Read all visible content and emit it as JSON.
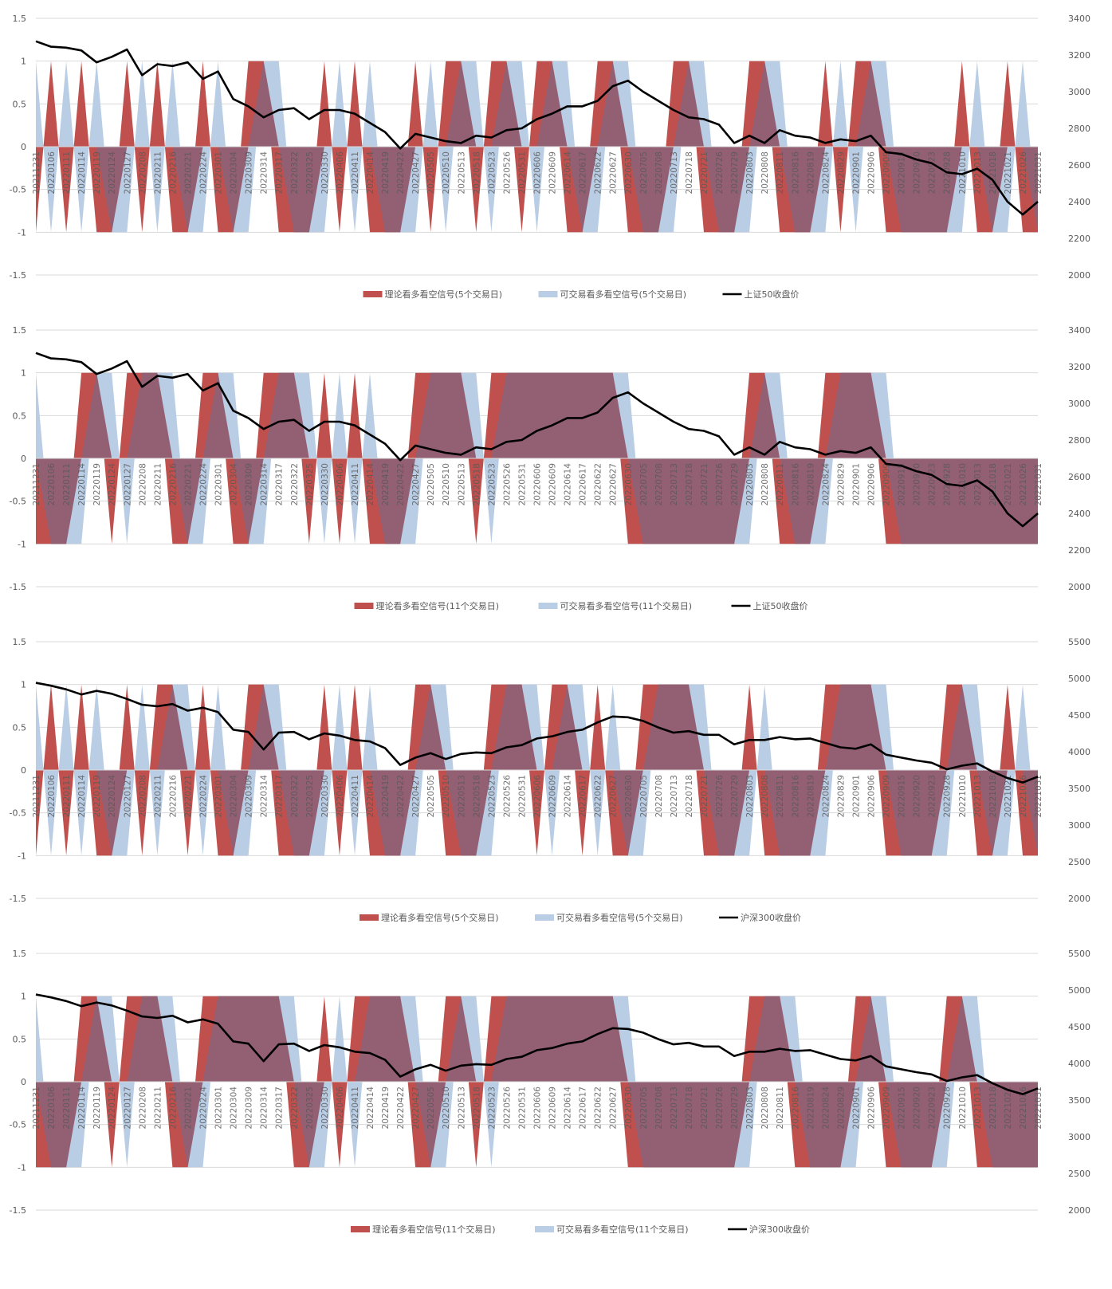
{
  "colors": {
    "theory": "#C0504D",
    "tradable": "#B9CDE5",
    "overlap": "#935F73",
    "close": "#000000",
    "grid": "#D9D9D9",
    "axis_text": "#595959"
  },
  "x_labels": [
    "20211231",
    "20220106",
    "20220111",
    "20220114",
    "20220119",
    "20220124",
    "20220127",
    "20220208",
    "20220211",
    "20220216",
    "20220221",
    "20220224",
    "20220301",
    "20220304",
    "20220309",
    "20220314",
    "20220317",
    "20220322",
    "20220325",
    "20220330",
    "20220406",
    "20220411",
    "20220414",
    "20220419",
    "20220422",
    "20220427",
    "20220505",
    "20220510",
    "20220513",
    "20220518",
    "20220523",
    "20220526",
    "20220531",
    "20220606",
    "20220609",
    "20220614",
    "20220617",
    "20220622",
    "20220627",
    "20220630",
    "20220705",
    "20220708",
    "20220713",
    "20220718",
    "20220721",
    "20220726",
    "20220729",
    "20220803",
    "20220808",
    "20220811",
    "20220816",
    "20220819",
    "20220824",
    "20220829",
    "20220901",
    "20220906",
    "20220909",
    "20220915",
    "20220920",
    "20220923",
    "20220928",
    "20221010",
    "20221013",
    "20221018",
    "20221021",
    "20221026",
    "20221031"
  ],
  "chart_data": [
    {
      "type": "area+line",
      "left_ticks": [
        "1.5",
        "1",
        "0.5",
        "0",
        "-0.5",
        "-1",
        "-1.5"
      ],
      "ylim": [
        -1.5,
        1.5
      ],
      "right_ticks": [
        "3400",
        "3200",
        "3000",
        "2800",
        "2600",
        "2400",
        "2200",
        "2000"
      ],
      "y2lim": [
        2000,
        3400
      ],
      "legend": [
        "理论看多看空信号(5个交易日)",
        "可交易看多看空信号(5个交易日)",
        "上证50收盘价"
      ],
      "legend_position": "bottom",
      "theory": [
        -1,
        1,
        -1,
        1,
        -1,
        -1,
        1,
        -1,
        1,
        -1,
        -1,
        1,
        -1,
        -1,
        1,
        1,
        -1,
        -1,
        -1,
        1,
        -1,
        1,
        -1,
        -1,
        -1,
        1,
        -1,
        1,
        1,
        -1,
        1,
        1,
        -1,
        1,
        1,
        -1,
        -1,
        1,
        1,
        -1,
        -1,
        -1,
        1,
        1,
        -1,
        -1,
        -1,
        1,
        1,
        -1,
        -1,
        -1,
        1,
        -1,
        1,
        1,
        -1,
        -1,
        -1,
        -1,
        -1,
        1,
        -1,
        -1,
        1,
        -1,
        -1
      ],
      "tradable": [
        1,
        -1,
        1,
        -1,
        1,
        -1,
        -1,
        1,
        -1,
        1,
        -1,
        -1,
        1,
        -1,
        -1,
        1,
        1,
        -1,
        -1,
        -1,
        1,
        -1,
        1,
        -1,
        -1,
        -1,
        1,
        -1,
        1,
        1,
        -1,
        1,
        1,
        -1,
        1,
        1,
        -1,
        -1,
        1,
        1,
        -1,
        -1,
        -1,
        1,
        1,
        -1,
        -1,
        -1,
        1,
        1,
        -1,
        -1,
        -1,
        1,
        -1,
        1,
        1,
        -1,
        -1,
        -1,
        -1,
        -1,
        1,
        -1,
        -1,
        1,
        -1
      ],
      "close": [
        3275,
        3245,
        3240,
        3225,
        3160,
        3190,
        3230,
        3090,
        3150,
        3140,
        3160,
        3070,
        3110,
        2960,
        2920,
        2860,
        2900,
        2910,
        2850,
        2900,
        2900,
        2880,
        2830,
        2780,
        2690,
        2770,
        2750,
        2730,
        2720,
        2760,
        2750,
        2790,
        2800,
        2850,
        2880,
        2920,
        2920,
        2950,
        3030,
        3060,
        3000,
        2950,
        2900,
        2860,
        2850,
        2820,
        2720,
        2760,
        2720,
        2790,
        2760,
        2750,
        2720,
        2740,
        2730,
        2760,
        2670,
        2660,
        2630,
        2610,
        2560,
        2550,
        2580,
        2520,
        2400,
        2330,
        2400
      ]
    },
    {
      "type": "area+line",
      "left_ticks": [
        "1.5",
        "1",
        "0.5",
        "0",
        "-0.5",
        "-1",
        "-1.5"
      ],
      "ylim": [
        -1.5,
        1.5
      ],
      "right_ticks": [
        "3400",
        "3200",
        "3000",
        "2800",
        "2600",
        "2400",
        "2200",
        "2000"
      ],
      "y2lim": [
        2000,
        3400
      ],
      "legend": [
        "理论看多看空信号(11个交易日)",
        "可交易看多看空信号(11个交易日)",
        "上证50收盘价"
      ],
      "legend_position": "bottom",
      "theory": [
        -1,
        -1,
        -1,
        1,
        1,
        -1,
        1,
        1,
        1,
        -1,
        -1,
        1,
        1,
        -1,
        -1,
        1,
        1,
        1,
        -1,
        1,
        -1,
        1,
        -1,
        -1,
        -1,
        1,
        1,
        1,
        1,
        -1,
        1,
        1,
        1,
        1,
        1,
        1,
        1,
        1,
        1,
        -1,
        -1,
        -1,
        -1,
        -1,
        -1,
        -1,
        -1,
        1,
        1,
        -1,
        -1,
        -1,
        1,
        1,
        1,
        1,
        -1,
        -1,
        -1,
        -1,
        -1,
        -1,
        -1,
        -1,
        -1,
        -1,
        -1
      ],
      "tradable": [
        1,
        -1,
        -1,
        -1,
        1,
        1,
        -1,
        1,
        1,
        1,
        -1,
        -1,
        1,
        1,
        -1,
        -1,
        1,
        1,
        1,
        -1,
        1,
        -1,
        1,
        -1,
        -1,
        -1,
        1,
        1,
        1,
        1,
        -1,
        1,
        1,
        1,
        1,
        1,
        1,
        1,
        1,
        1,
        -1,
        -1,
        -1,
        -1,
        -1,
        -1,
        -1,
        -1,
        1,
        1,
        -1,
        -1,
        -1,
        1,
        1,
        1,
        1,
        -1,
        -1,
        -1,
        -1,
        -1,
        -1,
        -1,
        -1,
        -1,
        -1
      ],
      "close": [
        3275,
        3245,
        3240,
        3225,
        3160,
        3190,
        3230,
        3090,
        3150,
        3140,
        3160,
        3070,
        3110,
        2960,
        2920,
        2860,
        2900,
        2910,
        2850,
        2900,
        2900,
        2880,
        2830,
        2780,
        2690,
        2770,
        2750,
        2730,
        2720,
        2760,
        2750,
        2790,
        2800,
        2850,
        2880,
        2920,
        2920,
        2950,
        3030,
        3060,
        3000,
        2950,
        2900,
        2860,
        2850,
        2820,
        2720,
        2760,
        2720,
        2790,
        2760,
        2750,
        2720,
        2740,
        2730,
        2760,
        2670,
        2660,
        2630,
        2610,
        2560,
        2550,
        2580,
        2520,
        2400,
        2330,
        2400
      ]
    },
    {
      "type": "area+line",
      "left_ticks": [
        "1.5",
        "1",
        "0.5",
        "0",
        "-0.5",
        "-1",
        "-1.5"
      ],
      "ylim": [
        -1.5,
        1.5
      ],
      "right_ticks": [
        "5500",
        "5000",
        "4500",
        "4000",
        "3500",
        "3000",
        "2500",
        "2000"
      ],
      "y2lim": [
        2000,
        5500
      ],
      "legend": [
        "理论看多看空信号(5个交易日)",
        "可交易看多看空信号(5个交易日)",
        "沪深300收盘价"
      ],
      "legend_position": "bottom",
      "theory": [
        -1,
        1,
        -1,
        1,
        -1,
        -1,
        1,
        -1,
        1,
        1,
        -1,
        1,
        -1,
        -1,
        1,
        1,
        -1,
        -1,
        -1,
        1,
        -1,
        1,
        -1,
        -1,
        -1,
        1,
        1,
        -1,
        -1,
        -1,
        1,
        1,
        1,
        -1,
        1,
        1,
        -1,
        1,
        -1,
        -1,
        1,
        1,
        1,
        1,
        -1,
        -1,
        -1,
        1,
        -1,
        -1,
        -1,
        -1,
        1,
        1,
        1,
        1,
        -1,
        -1,
        -1,
        -1,
        1,
        1,
        -1,
        -1,
        1,
        -1,
        -1
      ],
      "tradable": [
        1,
        -1,
        1,
        -1,
        1,
        -1,
        -1,
        1,
        -1,
        1,
        1,
        -1,
        1,
        -1,
        -1,
        1,
        1,
        -1,
        -1,
        -1,
        1,
        -1,
        1,
        -1,
        -1,
        -1,
        1,
        1,
        -1,
        -1,
        -1,
        1,
        1,
        1,
        -1,
        1,
        1,
        -1,
        1,
        -1,
        -1,
        1,
        1,
        1,
        1,
        -1,
        -1,
        -1,
        1,
        -1,
        -1,
        -1,
        -1,
        1,
        1,
        1,
        1,
        -1,
        -1,
        -1,
        -1,
        1,
        1,
        -1,
        -1,
        1,
        -1
      ],
      "close": [
        4940,
        4900,
        4850,
        4780,
        4830,
        4790,
        4720,
        4640,
        4620,
        4650,
        4560,
        4600,
        4540,
        4300,
        4270,
        4030,
        4260,
        4270,
        4170,
        4250,
        4220,
        4160,
        4140,
        4050,
        3820,
        3920,
        3980,
        3900,
        3970,
        3990,
        3980,
        4060,
        4090,
        4180,
        4210,
        4270,
        4300,
        4400,
        4480,
        4470,
        4420,
        4330,
        4260,
        4280,
        4230,
        4230,
        4100,
        4160,
        4160,
        4200,
        4170,
        4180,
        4120,
        4060,
        4040,
        4100,
        3960,
        3920,
        3880,
        3850,
        3760,
        3810,
        3840,
        3730,
        3640,
        3580,
        3660
      ]
    },
    {
      "type": "area+line",
      "left_ticks": [
        "1.5",
        "1",
        "0.5",
        "0",
        "-0.5",
        "-1",
        "-1.5"
      ],
      "ylim": [
        -1.5,
        1.5
      ],
      "right_ticks": [
        "5500",
        "5000",
        "4500",
        "4000",
        "3500",
        "3000",
        "2500",
        "2000"
      ],
      "y2lim": [
        2000,
        5500
      ],
      "legend": [
        "理论看多看空信号(11个交易日)",
        "可交易看多看空信号(11个交易日)",
        "沪深300收盘价"
      ],
      "legend_position": "bottom",
      "theory": [
        -1,
        -1,
        -1,
        1,
        1,
        -1,
        1,
        1,
        1,
        -1,
        -1,
        1,
        1,
        1,
        1,
        1,
        1,
        -1,
        -1,
        1,
        -1,
        1,
        1,
        1,
        1,
        -1,
        -1,
        1,
        1,
        -1,
        1,
        1,
        1,
        1,
        1,
        1,
        1,
        1,
        1,
        -1,
        -1,
        -1,
        -1,
        -1,
        -1,
        -1,
        -1,
        1,
        1,
        1,
        -1,
        -1,
        -1,
        -1,
        1,
        1,
        -1,
        -1,
        -1,
        -1,
        1,
        1,
        -1,
        -1,
        -1,
        -1,
        -1
      ],
      "tradable": [
        1,
        -1,
        -1,
        -1,
        1,
        1,
        -1,
        1,
        1,
        1,
        -1,
        -1,
        1,
        1,
        1,
        1,
        1,
        1,
        -1,
        -1,
        1,
        -1,
        1,
        1,
        1,
        1,
        -1,
        -1,
        1,
        1,
        -1,
        1,
        1,
        1,
        1,
        1,
        1,
        1,
        1,
        1,
        -1,
        -1,
        -1,
        -1,
        -1,
        -1,
        -1,
        -1,
        1,
        1,
        1,
        -1,
        -1,
        -1,
        -1,
        1,
        1,
        -1,
        -1,
        -1,
        -1,
        1,
        1,
        -1,
        -1,
        -1,
        -1
      ],
      "close": [
        4940,
        4900,
        4850,
        4780,
        4830,
        4790,
        4720,
        4640,
        4620,
        4650,
        4560,
        4600,
        4540,
        4300,
        4270,
        4030,
        4260,
        4270,
        4170,
        4250,
        4220,
        4160,
        4140,
        4050,
        3820,
        3920,
        3980,
        3900,
        3970,
        3990,
        3980,
        4060,
        4090,
        4180,
        4210,
        4270,
        4300,
        4400,
        4480,
        4470,
        4420,
        4330,
        4260,
        4280,
        4230,
        4230,
        4100,
        4160,
        4160,
        4200,
        4170,
        4180,
        4120,
        4060,
        4040,
        4100,
        3960,
        3920,
        3880,
        3850,
        3760,
        3810,
        3840,
        3730,
        3640,
        3580,
        3660
      ]
    }
  ]
}
